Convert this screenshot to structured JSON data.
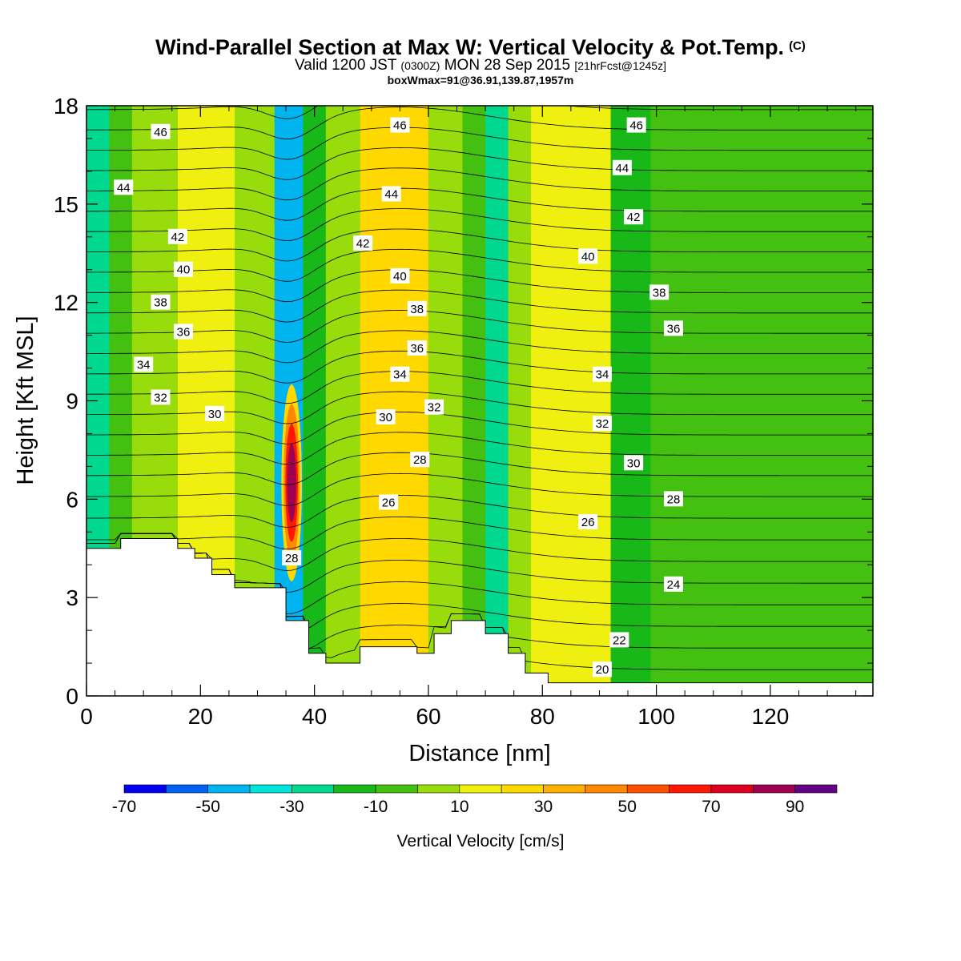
{
  "header": {
    "title": "Wind-Parallel Section at Max W: Vertical Velocity & Pot.Temp.",
    "copyright": "(C)",
    "valid_prefix": "Valid 1200 JST",
    "valid_z": "(0300Z)",
    "valid_date": "MON 28 Sep 2015",
    "forecast": "[21hrFcst@1245z]",
    "boxmax": "boxWmax=91@36.91,139.87,1957m"
  },
  "chart_data": {
    "type": "heatmap",
    "xlabel": "Distance [nm]",
    "ylabel": "Height [Kft MSL]",
    "xlim": [
      0,
      138
    ],
    "ylim": [
      0,
      18
    ],
    "xticks": [
      0,
      20,
      40,
      60,
      80,
      100,
      120
    ],
    "yticks": [
      0,
      3,
      6,
      9,
      12,
      15,
      18
    ],
    "colorbar": {
      "title": "Vertical Velocity [cm/s]",
      "boundaries": [
        -70,
        -60,
        -50,
        -40,
        -30,
        -20,
        -10,
        0,
        10,
        20,
        30,
        40,
        50,
        60,
        70,
        80,
        90,
        100
      ],
      "tick_values": [
        -70,
        -50,
        -30,
        -10,
        10,
        30,
        50,
        70,
        90
      ],
      "colors": [
        "#0000ee",
        "#0060f0",
        "#00b4f0",
        "#00e4dc",
        "#00d890",
        "#18b818",
        "#44c010",
        "#98dc0c",
        "#f0f010",
        "#ffd800",
        "#ffb000",
        "#ff8800",
        "#ff5000",
        "#ff1800",
        "#dc0020",
        "#a00050",
        "#640088"
      ]
    },
    "velocity_bands": [
      {
        "x": [
          0,
          4
        ],
        "w": -30
      },
      {
        "x": [
          4,
          8
        ],
        "w": -10
      },
      {
        "x": [
          8,
          16
        ],
        "w": 0
      },
      {
        "x": [
          16,
          26
        ],
        "w": 10
      },
      {
        "x": [
          26,
          33
        ],
        "w": 0
      },
      {
        "x": [
          33,
          38
        ],
        "w": -50
      },
      {
        "x": [
          38,
          42
        ],
        "w": -20
      },
      {
        "x": [
          42,
          48
        ],
        "w": 0
      },
      {
        "x": [
          48,
          60
        ],
        "w": 20
      },
      {
        "x": [
          60,
          66
        ],
        "w": 0
      },
      {
        "x": [
          66,
          70
        ],
        "w": -10
      },
      {
        "x": [
          70,
          74
        ],
        "w": -30
      },
      {
        "x": [
          74,
          78
        ],
        "w": 0
      },
      {
        "x": [
          78,
          92
        ],
        "w": 15
      },
      {
        "x": [
          92,
          99
        ],
        "w": -20
      },
      {
        "x": [
          99,
          138
        ],
        "w": -5
      }
    ],
    "updraft_core": {
      "x": 36,
      "height": 6.5,
      "w_max": 91
    },
    "terrain": [
      [
        0,
        4.5
      ],
      [
        6,
        4.5
      ],
      [
        6,
        4.8
      ],
      [
        16,
        4.8
      ],
      [
        16,
        4.5
      ],
      [
        19,
        4.5
      ],
      [
        19,
        4.2
      ],
      [
        22,
        4.2
      ],
      [
        22,
        3.7
      ],
      [
        26,
        3.7
      ],
      [
        26,
        3.3
      ],
      [
        35,
        3.3
      ],
      [
        35,
        2.3
      ],
      [
        39,
        2.3
      ],
      [
        39,
        1.3
      ],
      [
        42,
        1.3
      ],
      [
        42,
        1.0
      ],
      [
        48,
        1.0
      ],
      [
        48,
        1.5
      ],
      [
        58,
        1.5
      ],
      [
        58,
        1.3
      ],
      [
        61,
        1.3
      ],
      [
        61,
        1.9
      ],
      [
        64,
        1.9
      ],
      [
        64,
        2.3
      ],
      [
        70,
        2.3
      ],
      [
        70,
        1.9
      ],
      [
        74,
        1.9
      ],
      [
        74,
        1.3
      ],
      [
        77,
        1.3
      ],
      [
        77,
        0.7
      ],
      [
        81,
        0.7
      ],
      [
        81,
        0.4
      ],
      [
        138,
        0.4
      ]
    ],
    "theta_levels": [
      20,
      21,
      22,
      23,
      24,
      25,
      26,
      27,
      28,
      29,
      30,
      31,
      32,
      33,
      34,
      35,
      36,
      37,
      38,
      39,
      40,
      41,
      42,
      43,
      44,
      45,
      46,
      47
    ],
    "theta_labels": [
      {
        "v": "46",
        "x": 13,
        "y": 17.2
      },
      {
        "v": "44",
        "x": 6.5,
        "y": 15.5
      },
      {
        "v": "42",
        "x": 16,
        "y": 14.0
      },
      {
        "v": "40",
        "x": 17,
        "y": 13.0
      },
      {
        "v": "38",
        "x": 13,
        "y": 12.0
      },
      {
        "v": "36",
        "x": 17,
        "y": 11.1
      },
      {
        "v": "34",
        "x": 10,
        "y": 10.1
      },
      {
        "v": "32",
        "x": 13,
        "y": 9.1
      },
      {
        "v": "30",
        "x": 22.5,
        "y": 8.6
      },
      {
        "v": "46",
        "x": 55,
        "y": 17.4
      },
      {
        "v": "44",
        "x": 53.5,
        "y": 15.3
      },
      {
        "v": "42",
        "x": 48.5,
        "y": 13.8
      },
      {
        "v": "40",
        "x": 55,
        "y": 12.8
      },
      {
        "v": "38",
        "x": 58,
        "y": 11.8
      },
      {
        "v": "36",
        "x": 58,
        "y": 10.6
      },
      {
        "v": "34",
        "x": 55,
        "y": 9.8
      },
      {
        "v": "32",
        "x": 61,
        "y": 8.8
      },
      {
        "v": "30",
        "x": 52.5,
        "y": 8.5
      },
      {
        "v": "28",
        "x": 58.5,
        "y": 7.2
      },
      {
        "v": "26",
        "x": 53,
        "y": 5.9
      },
      {
        "v": "28",
        "x": 36,
        "y": 4.2
      },
      {
        "v": "46",
        "x": 96.5,
        "y": 17.4
      },
      {
        "v": "44",
        "x": 94,
        "y": 16.1
      },
      {
        "v": "42",
        "x": 96,
        "y": 14.6
      },
      {
        "v": "40",
        "x": 88,
        "y": 13.4
      },
      {
        "v": "38",
        "x": 100.5,
        "y": 12.3
      },
      {
        "v": "36",
        "x": 103,
        "y": 11.2
      },
      {
        "v": "34",
        "x": 90.5,
        "y": 9.8
      },
      {
        "v": "32",
        "x": 90.5,
        "y": 8.3
      },
      {
        "v": "30",
        "x": 96,
        "y": 7.1
      },
      {
        "v": "28",
        "x": 103,
        "y": 6.0
      },
      {
        "v": "26",
        "x": 88,
        "y": 5.3
      },
      {
        "v": "24",
        "x": 103,
        "y": 3.4
      },
      {
        "v": "22",
        "x": 93.5,
        "y": 1.7
      },
      {
        "v": "20",
        "x": 90.5,
        "y": 0.8
      }
    ]
  }
}
